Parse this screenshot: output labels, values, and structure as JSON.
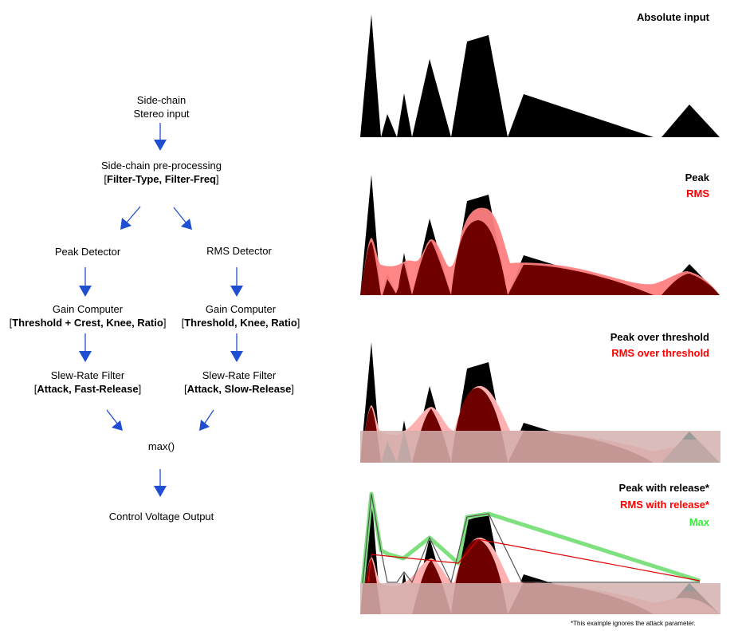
{
  "flow": {
    "sidechain_line1": "Side-chain",
    "sidechain_line2": "Stereo input",
    "preproc_line1": "Side-chain pre-processing",
    "preproc_line2_pre": "[",
    "preproc_line2_bold": "Filter-Type, Filter-Freq",
    "preproc_line2_post": "]",
    "peak_detector": "Peak Detector",
    "rms_detector": "RMS Detector",
    "gain_left_line1": "Gain Computer",
    "gain_left_line2_bold": "Threshold + Crest, Knee, Ratio",
    "gain_right_line1": "Gain Computer",
    "gain_right_line2_bold": "Threshold, Knee, Ratio",
    "slew_left_line1": "Slew-Rate Filter",
    "slew_left_line2_bold": "Attack, Fast-Release",
    "slew_right_line1": "Slew-Rate Filter",
    "slew_right_line2_bold": "Attack, Slow-Release",
    "max_node": "max()",
    "output": "Control Voltage Output",
    "bracket_open": "[",
    "bracket_close": "]"
  },
  "panels": {
    "p1_label": "Absolute input",
    "p2_peak": "Peak",
    "p2_rms": "RMS",
    "p3_peak": "Peak over threshold",
    "p3_rms": "RMS over threshold",
    "p4_peak": "Peak with release*",
    "p4_rms": "RMS with release*",
    "p4_max": "Max",
    "footnote": "*This example ignores the attack parameter."
  },
  "colors": {
    "arrow": "#1f4fd0",
    "peak": "#000000",
    "rms_fill": "#ff8080",
    "overlap": "#6e0000",
    "rms_text": "#ff0000",
    "max": "#33ee33",
    "threshold_band": "#d4b0ae"
  }
}
